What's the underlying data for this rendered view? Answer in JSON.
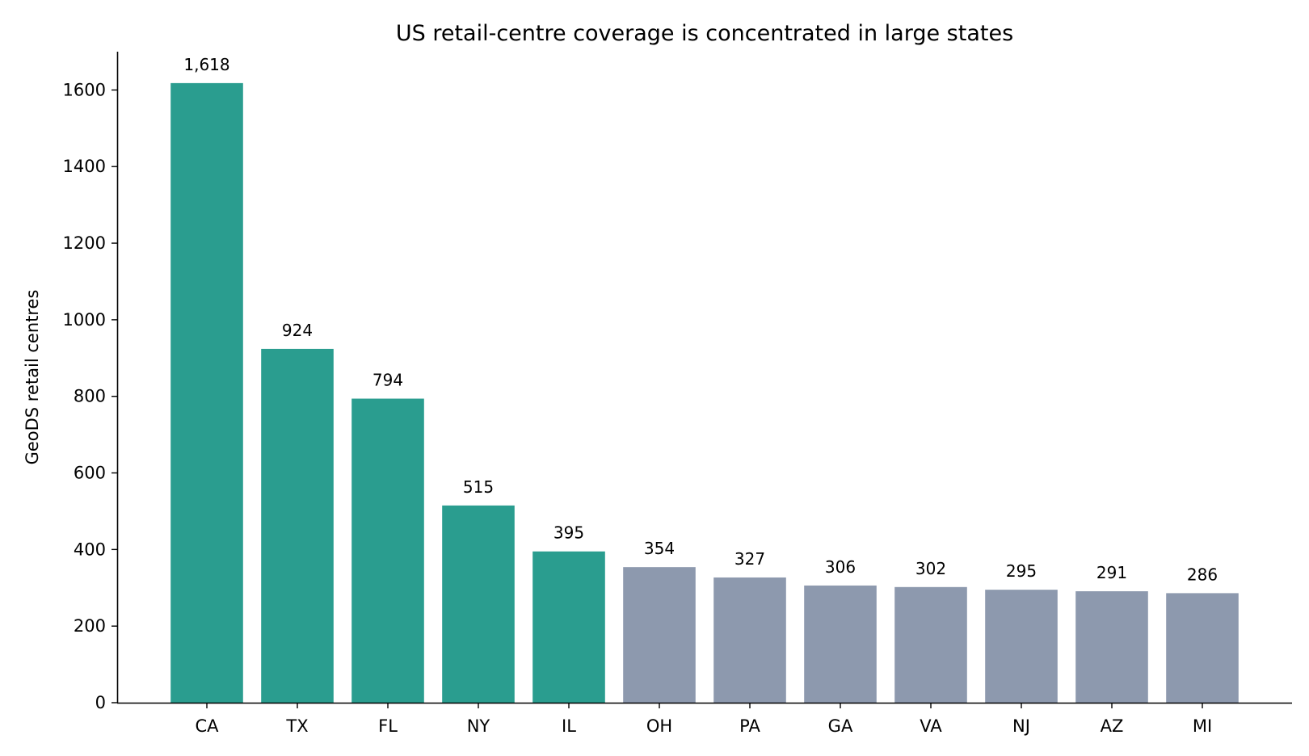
{
  "chart_data": {
    "type": "bar",
    "title": "US retail-centre coverage is concentrated in large states",
    "xlabel": "",
    "ylabel": "GeoDS retail centres",
    "categories": [
      "CA",
      "TX",
      "FL",
      "NY",
      "IL",
      "OH",
      "PA",
      "GA",
      "VA",
      "NJ",
      "AZ",
      "MI"
    ],
    "values": [
      1618,
      924,
      794,
      515,
      395,
      354,
      327,
      306,
      302,
      295,
      291,
      286
    ],
    "value_labels": [
      "1,618",
      "924",
      "794",
      "515",
      "395",
      "354",
      "327",
      "306",
      "302",
      "295",
      "291",
      "286"
    ],
    "highlight_count": 5,
    "colors": {
      "highlight": "#2a9d8f",
      "other": "#8d99ae"
    },
    "ylim": [
      0,
      1700
    ],
    "yticks": [
      0,
      200,
      400,
      600,
      800,
      1000,
      1200,
      1400,
      1600
    ],
    "grid": false,
    "legend": "none"
  }
}
